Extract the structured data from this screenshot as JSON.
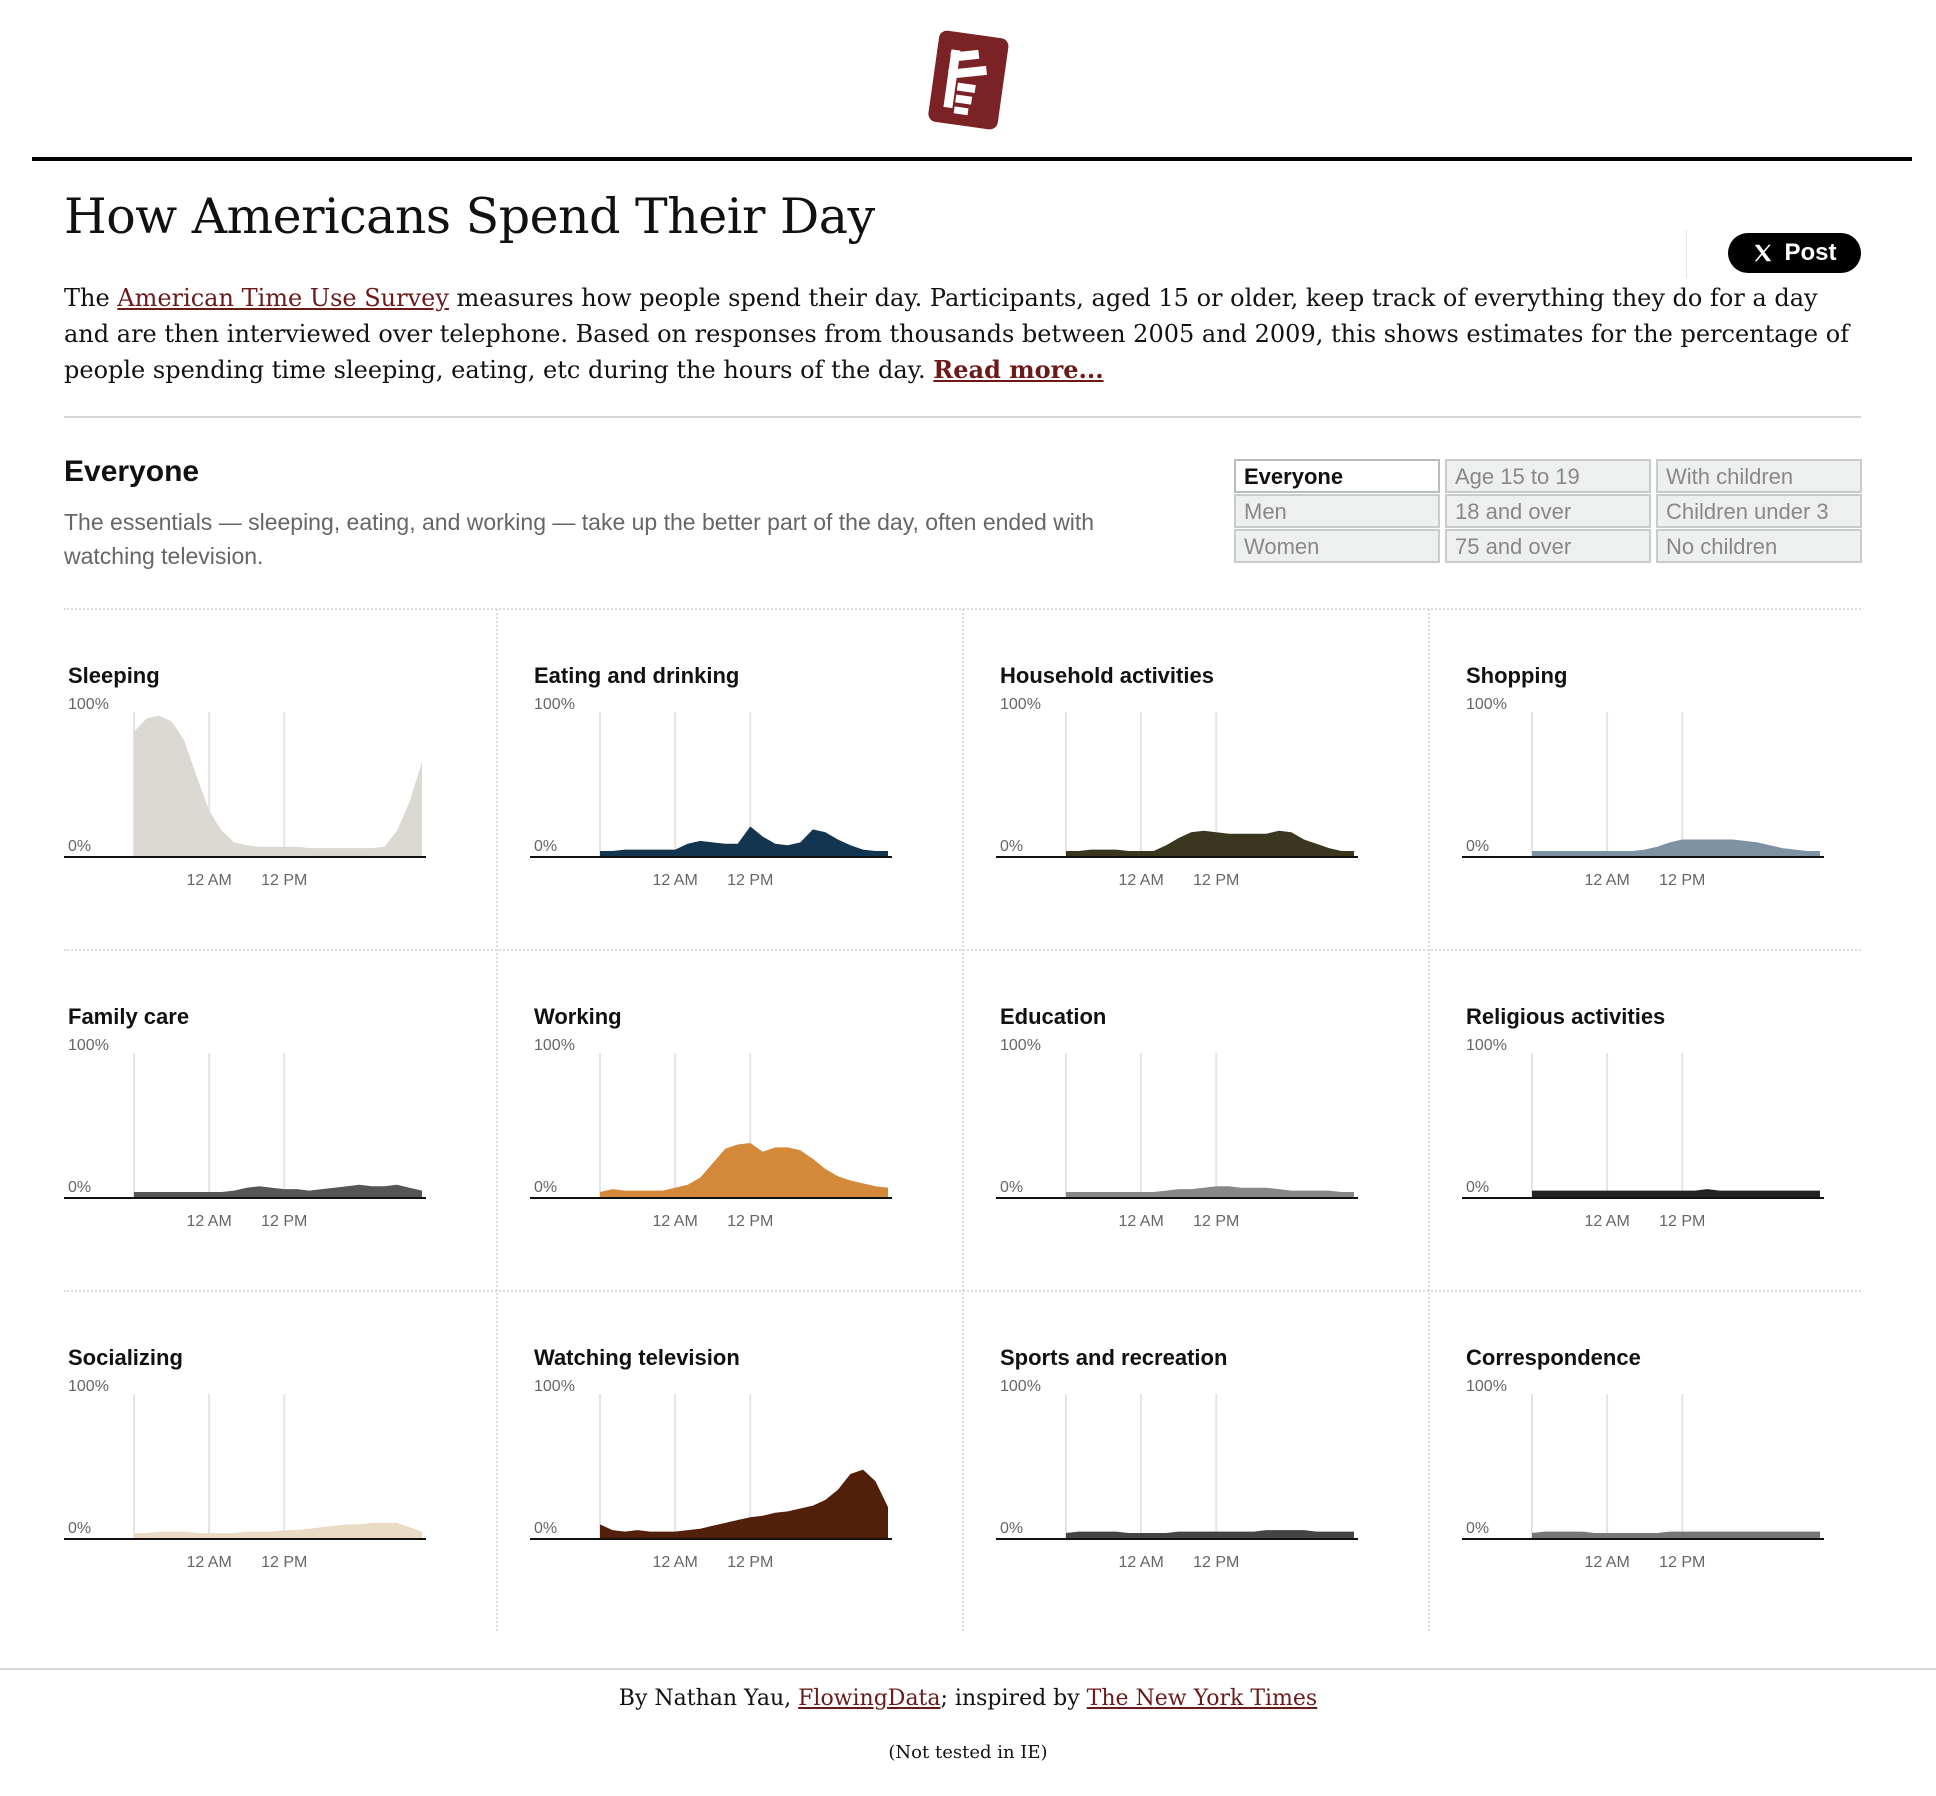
{
  "page": {
    "title": "How Americans Spend Their Day",
    "colors": {
      "accent": "#6b1a1a",
      "logo": "#7a2226"
    }
  },
  "logo": {
    "icon": "flowingdata-logo-icon"
  },
  "share": {
    "label": "Post",
    "icon": "x-icon"
  },
  "intro": {
    "prefix": "The ",
    "link_text": "American Time Use Survey",
    "body": " measures how people spend their day. Participants, aged 15 or older, keep track of everything they do for a day and are then interviewed over telephone. Based on responses from thousands between 2005 and 2009, this shows estimates for the percentage of people spending time sleeping, eating, etc during the hours of the day. ",
    "read_more": "Read more..."
  },
  "group": {
    "title": "Everyone",
    "description": "The essentials — sleeping, eating, and working — take up the better part of the day, often ended with watching television."
  },
  "filters": {
    "selected": "Everyone",
    "columns": [
      [
        "Everyone",
        "Men",
        "Women"
      ],
      [
        "Age 15 to 19",
        "18 and over",
        "75 and over"
      ],
      [
        "With children",
        "Children under 3",
        "No children"
      ]
    ]
  },
  "chart_data": {
    "type": "area",
    "x": [
      4,
      5,
      6,
      7,
      8,
      9,
      10,
      11,
      12,
      13,
      14,
      15,
      16,
      17,
      18,
      19,
      20,
      21,
      22,
      23,
      24,
      25,
      26,
      27
    ],
    "x_ticks": [
      {
        "x": 4,
        "label": ""
      },
      {
        "x": 10,
        "label": "12 AM"
      },
      {
        "x": 16,
        "label": "12 PM"
      }
    ],
    "y_tick_labels": [
      "100%",
      "0%"
    ],
    "ylim": [
      0,
      100
    ],
    "panels": [
      {
        "title": "Sleeping",
        "color": "#dcd8d2",
        "values": [
          83,
          92,
          94,
          90,
          77,
          52,
          28,
          14,
          6,
          4,
          3,
          3,
          3,
          3,
          2,
          2,
          2,
          2,
          2,
          2,
          3,
          14,
          34,
          62
        ]
      },
      {
        "title": "Eating and drinking",
        "color": "#14354f",
        "values": [
          0,
          0,
          1,
          1,
          1,
          1,
          1,
          5,
          7,
          6,
          5,
          5,
          17,
          10,
          5,
          4,
          6,
          15,
          13,
          8,
          4,
          1,
          0,
          0
        ]
      },
      {
        "title": "Household activities",
        "color": "#3a3620",
        "values": [
          0,
          0,
          1,
          1,
          1,
          0,
          0,
          0,
          4,
          9,
          13,
          14,
          13,
          12,
          12,
          12,
          12,
          14,
          13,
          8,
          5,
          2,
          0,
          0
        ]
      },
      {
        "title": "Shopping",
        "color": "#7f92a4",
        "values": [
          0,
          0,
          0,
          0,
          0,
          0,
          0,
          0,
          0,
          1,
          3,
          6,
          8,
          8,
          8,
          8,
          8,
          7,
          6,
          4,
          2,
          1,
          0,
          0
        ]
      },
      {
        "title": "Family care",
        "color": "#555555",
        "values": [
          0,
          0,
          0,
          0,
          0,
          0,
          0,
          0,
          1,
          3,
          4,
          3,
          2,
          2,
          1,
          2,
          3,
          4,
          5,
          4,
          4,
          5,
          3,
          1
        ]
      },
      {
        "title": "Working",
        "color": "#d4883a",
        "values": [
          0,
          2,
          1,
          1,
          1,
          1,
          3,
          5,
          10,
          20,
          30,
          33,
          34,
          28,
          31,
          31,
          29,
          23,
          16,
          11,
          8,
          6,
          4,
          3
        ]
      },
      {
        "title": "Education",
        "color": "#888888",
        "values": [
          0,
          0,
          0,
          0,
          0,
          0,
          0,
          0,
          1,
          2,
          2,
          3,
          4,
          4,
          3,
          3,
          3,
          2,
          1,
          1,
          1,
          1,
          0,
          0
        ]
      },
      {
        "title": "Religious activities",
        "color": "#222222",
        "values": [
          1,
          1,
          1,
          1,
          1,
          1,
          1,
          1,
          1,
          1,
          1,
          1,
          1,
          1,
          2,
          1,
          1,
          1,
          1,
          1,
          1,
          1,
          1,
          1
        ]
      },
      {
        "title": "Socializing",
        "color": "#eadbc4",
        "values": [
          0,
          0,
          1,
          1,
          1,
          0,
          0,
          0,
          0,
          1,
          1,
          1,
          2,
          2,
          3,
          4,
          5,
          6,
          6,
          7,
          7,
          7,
          4,
          1
        ]
      },
      {
        "title": "Watching television",
        "color": "#521f0b",
        "values": [
          6,
          2,
          1,
          2,
          1,
          1,
          1,
          2,
          3,
          5,
          7,
          9,
          11,
          12,
          14,
          15,
          17,
          19,
          23,
          30,
          41,
          44,
          36,
          18
        ]
      },
      {
        "title": "Sports and recreation",
        "color": "#444444",
        "values": [
          0,
          1,
          1,
          1,
          1,
          0,
          0,
          0,
          0,
          1,
          1,
          1,
          1,
          1,
          1,
          1,
          2,
          2,
          2,
          2,
          1,
          1,
          1,
          1
        ]
      },
      {
        "title": "Correspondence",
        "color": "#777777",
        "values": [
          0,
          1,
          1,
          1,
          1,
          0,
          0,
          0,
          0,
          0,
          0,
          1,
          1,
          1,
          1,
          1,
          1,
          1,
          1,
          1,
          1,
          1,
          1,
          1
        ]
      }
    ]
  },
  "footer": {
    "byline_prefix": "By Nathan Yau, ",
    "fd_link": "FlowingData",
    "byline_mid": "; inspired by ",
    "nyt_link": "The New York Times",
    "note": "(Not tested in IE)"
  }
}
